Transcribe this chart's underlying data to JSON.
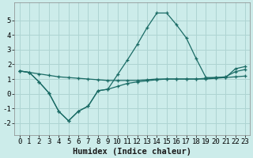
{
  "xlabel": "Humidex (Indice chaleur)",
  "background_color": "#ccecea",
  "grid_color": "#aed4d2",
  "line_color": "#1a6b65",
  "xlim": [
    -0.5,
    23.5
  ],
  "ylim": [
    -2.8,
    6.2
  ],
  "xticks": [
    0,
    1,
    2,
    3,
    4,
    5,
    6,
    7,
    8,
    9,
    10,
    11,
    12,
    13,
    14,
    15,
    16,
    17,
    18,
    19,
    20,
    21,
    22,
    23
  ],
  "yticks": [
    -2,
    -1,
    0,
    1,
    2,
    3,
    4,
    5
  ],
  "line1_x": [
    0,
    1,
    2,
    3,
    4,
    5,
    6,
    7,
    8,
    9,
    10,
    11,
    12,
    13,
    14,
    15,
    16,
    17,
    18,
    19,
    20,
    21,
    22,
    23
  ],
  "line1_y": [
    1.55,
    1.45,
    1.35,
    1.25,
    1.15,
    1.1,
    1.05,
    1.0,
    0.95,
    0.9,
    0.9,
    0.9,
    0.9,
    0.95,
    1.0,
    1.0,
    1.0,
    1.0,
    1.0,
    1.0,
    1.05,
    1.1,
    1.15,
    1.2
  ],
  "line2_x": [
    0,
    1,
    2,
    3,
    4,
    5,
    6,
    7,
    8,
    9,
    10,
    11,
    12,
    13,
    14,
    15,
    16,
    17,
    18,
    19,
    20,
    21,
    22,
    23
  ],
  "line2_y": [
    1.55,
    1.45,
    0.8,
    0.05,
    -1.2,
    -1.85,
    -1.2,
    -0.85,
    0.2,
    0.3,
    0.5,
    0.7,
    0.8,
    0.88,
    0.95,
    1.0,
    1.0,
    1.0,
    1.0,
    1.05,
    1.1,
    1.15,
    1.5,
    1.65
  ],
  "line3_x": [
    0,
    1,
    2,
    3,
    4,
    5,
    6,
    7,
    8,
    9,
    10,
    11,
    12,
    13,
    14,
    15,
    16,
    17,
    18,
    19,
    20,
    21,
    22,
    23
  ],
  "line3_y": [
    1.55,
    1.45,
    0.8,
    0.05,
    -1.2,
    -1.85,
    -1.2,
    -0.85,
    0.2,
    0.3,
    1.3,
    2.3,
    3.35,
    4.5,
    5.5,
    5.5,
    4.7,
    3.8,
    2.4,
    1.1,
    1.1,
    1.1,
    1.7,
    1.85
  ],
  "xlabel_fontsize": 7.5,
  "tick_fontsize": 6.5
}
